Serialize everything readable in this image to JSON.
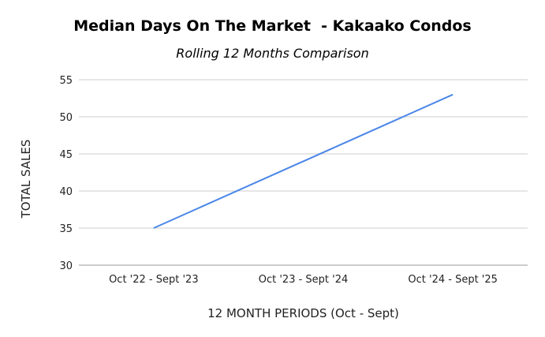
{
  "chart_data": {
    "type": "line",
    "title": "Median Days On The Market  - Kakaako Condos",
    "subtitle": "Rolling 12 Months Comparison",
    "xlabel": "12 MONTH PERIODS (Oct - Sept)",
    "ylabel": "TOTAL SALES",
    "categories": [
      "Oct '22 - Sept '23",
      "Oct '23 - Sept '24",
      "Oct '24 - Sept '25"
    ],
    "series": [
      {
        "values": [
          35,
          44,
          53
        ]
      }
    ],
    "ylim": [
      30,
      55
    ],
    "yticks": [
      30,
      35,
      40,
      45,
      50,
      55
    ],
    "grid": true,
    "legend": "none",
    "colors": {
      "line": "#4a86e8",
      "grid": "#cccccc",
      "baseline": "#999999"
    }
  }
}
